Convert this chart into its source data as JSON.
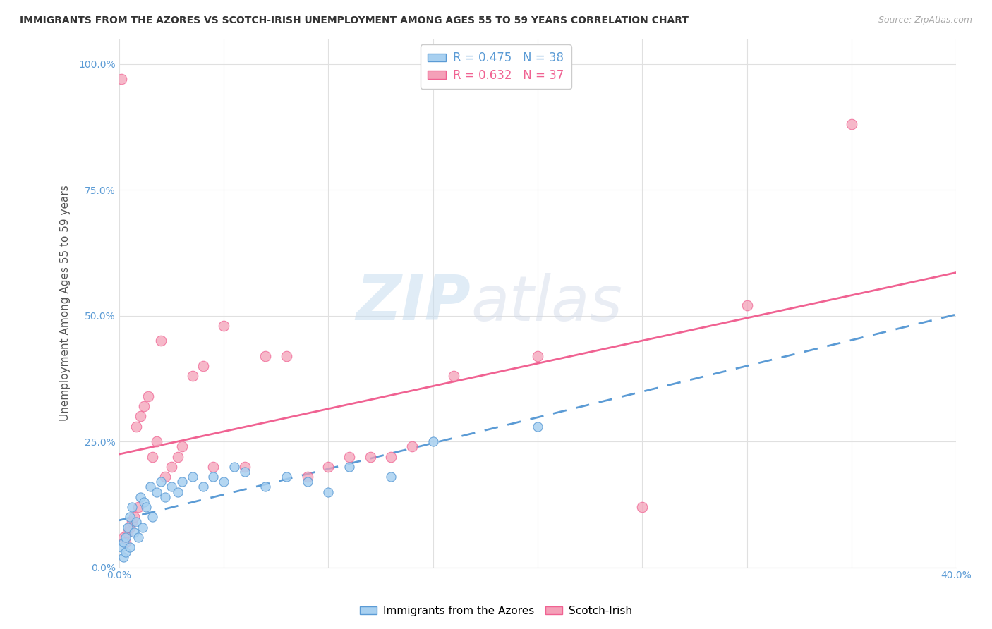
{
  "title": "IMMIGRANTS FROM THE AZORES VS SCOTCH-IRISH UNEMPLOYMENT AMONG AGES 55 TO 59 YEARS CORRELATION CHART",
  "source": "Source: ZipAtlas.com",
  "ylabel": "Unemployment Among Ages 55 to 59 years",
  "watermark_zip": "ZIP",
  "watermark_atlas": "atlas",
  "legend_label1": "Immigrants from the Azores",
  "legend_label2": "Scotch-Irish",
  "r1": 0.475,
  "n1": 38,
  "r2": 0.632,
  "n2": 37,
  "xlim": [
    0.0,
    0.4
  ],
  "ylim": [
    0.0,
    1.05
  ],
  "xticks_show": [
    0.0,
    0.4
  ],
  "yticks": [
    0.0,
    0.25,
    0.5,
    0.75,
    1.0
  ],
  "ytick_labels": [
    "0.0%",
    "25.0%",
    "50.0%",
    "75.0%",
    "100.0%"
  ],
  "xtick_labels_show": [
    "0.0%",
    "40.0%"
  ],
  "grid_xticks": [
    0.0,
    0.05,
    0.1,
    0.15,
    0.2,
    0.25,
    0.3,
    0.35,
    0.4
  ],
  "color_azores": "#a8d0f0",
  "color_scotch": "#f4a0b8",
  "trendline_azores_color": "#5b9bd5",
  "trendline_scotch_color": "#f06292",
  "azores_x": [
    0.001,
    0.002,
    0.002,
    0.003,
    0.003,
    0.004,
    0.005,
    0.005,
    0.006,
    0.007,
    0.008,
    0.009,
    0.01,
    0.011,
    0.012,
    0.013,
    0.015,
    0.016,
    0.018,
    0.02,
    0.022,
    0.025,
    0.028,
    0.03,
    0.035,
    0.04,
    0.045,
    0.05,
    0.055,
    0.06,
    0.07,
    0.08,
    0.09,
    0.1,
    0.11,
    0.13,
    0.15,
    0.2
  ],
  "azores_y": [
    0.04,
    0.02,
    0.05,
    0.03,
    0.06,
    0.08,
    0.04,
    0.1,
    0.12,
    0.07,
    0.09,
    0.06,
    0.14,
    0.08,
    0.13,
    0.12,
    0.16,
    0.1,
    0.15,
    0.17,
    0.14,
    0.16,
    0.15,
    0.17,
    0.18,
    0.16,
    0.18,
    0.17,
    0.2,
    0.19,
    0.16,
    0.18,
    0.17,
    0.15,
    0.2,
    0.18,
    0.25,
    0.28
  ],
  "scotch_x": [
    0.001,
    0.002,
    0.003,
    0.004,
    0.005,
    0.006,
    0.007,
    0.008,
    0.009,
    0.01,
    0.012,
    0.014,
    0.016,
    0.018,
    0.02,
    0.022,
    0.025,
    0.028,
    0.03,
    0.035,
    0.04,
    0.045,
    0.05,
    0.06,
    0.07,
    0.08,
    0.09,
    0.1,
    0.11,
    0.12,
    0.13,
    0.14,
    0.16,
    0.2,
    0.25,
    0.3,
    0.35
  ],
  "scotch_y": [
    0.97,
    0.06,
    0.05,
    0.07,
    0.08,
    0.09,
    0.1,
    0.28,
    0.12,
    0.3,
    0.32,
    0.34,
    0.22,
    0.25,
    0.45,
    0.18,
    0.2,
    0.22,
    0.24,
    0.38,
    0.4,
    0.2,
    0.48,
    0.2,
    0.42,
    0.42,
    0.18,
    0.2,
    0.22,
    0.22,
    0.22,
    0.24,
    0.38,
    0.42,
    0.12,
    0.52,
    0.88
  ],
  "background_color": "#ffffff",
  "grid_color": "#e0e0e0"
}
